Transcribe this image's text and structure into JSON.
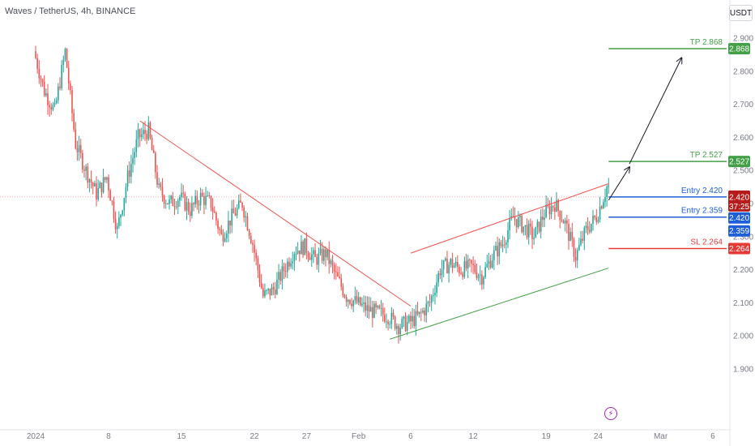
{
  "header": {
    "symbol_title": "Waves / TetherUS, 4h, BINANCE",
    "currency": "USDT"
  },
  "event_icon": "lightning-icon",
  "colors": {
    "up": "#26a69a",
    "down": "#ef5350",
    "tp": "#43a047",
    "entry": "#1e5fd8",
    "sl": "#e53935",
    "current": "#b71c1c",
    "countdown": "#c62828"
  },
  "price_tags": {
    "current_price": "2.420",
    "countdown": "37:25",
    "entry_420": "2.420",
    "entry_359": "2.359"
  },
  "chart_data": {
    "type": "candlestick",
    "title": "Waves / TetherUS, 4h, BINANCE",
    "y_axis": {
      "range": [
        1.88,
        2.94
      ],
      "ticks": [
        "2.900",
        "2.800",
        "2.700",
        "2.600",
        "2.500",
        "2.400",
        "2.300",
        "2.200",
        "2.100",
        "2.000",
        "1.900"
      ]
    },
    "x_axis": {
      "range": [
        "2024-01-01",
        "2024-03-06"
      ],
      "ticks": [
        {
          "date": "2024-01-01",
          "label": "2024"
        },
        {
          "date": "2024-01-08",
          "label": "8"
        },
        {
          "date": "2024-01-15",
          "label": "15"
        },
        {
          "date": "2024-01-22",
          "label": "22"
        },
        {
          "date": "2024-01-27",
          "label": "27"
        },
        {
          "date": "2024-02-01",
          "label": "Feb"
        },
        {
          "date": "2024-02-06",
          "label": "6"
        },
        {
          "date": "2024-02-12",
          "label": "12"
        },
        {
          "date": "2024-02-19",
          "label": "19"
        },
        {
          "date": "2024-02-24",
          "label": "24"
        },
        {
          "date": "2024-03-01",
          "label": "Mar"
        },
        {
          "date": "2024-03-06",
          "label": "6"
        }
      ]
    },
    "price_path": [
      [
        "2024-01-01",
        2.86
      ],
      [
        "2024-01-02",
        2.74
      ],
      [
        "2024-01-03",
        2.68
      ],
      [
        "2024-01-04",
        2.86
      ],
      [
        "2024-01-05",
        2.58
      ],
      [
        "2024-01-06",
        2.5
      ],
      [
        "2024-01-07",
        2.43
      ],
      [
        "2024-01-08",
        2.48
      ],
      [
        "2024-01-09",
        2.32
      ],
      [
        "2024-01-10",
        2.48
      ],
      [
        "2024-01-11",
        2.6
      ],
      [
        "2024-01-12",
        2.62
      ],
      [
        "2024-01-13",
        2.44
      ],
      [
        "2024-01-14",
        2.4
      ],
      [
        "2024-01-15",
        2.42
      ],
      [
        "2024-01-16",
        2.38
      ],
      [
        "2024-01-17",
        2.42
      ],
      [
        "2024-01-18",
        2.4
      ],
      [
        "2024-01-19",
        2.3
      ],
      [
        "2024-01-20",
        2.36
      ],
      [
        "2024-01-21",
        2.4
      ],
      [
        "2024-01-22",
        2.28
      ],
      [
        "2024-01-23",
        2.12
      ],
      [
        "2024-01-24",
        2.14
      ],
      [
        "2024-01-25",
        2.2
      ],
      [
        "2024-01-26",
        2.26
      ],
      [
        "2024-01-27",
        2.27
      ],
      [
        "2024-01-28",
        2.23
      ],
      [
        "2024-01-29",
        2.25
      ],
      [
        "2024-01-30",
        2.18
      ],
      [
        "2024-01-31",
        2.12
      ],
      [
        "2024-02-01",
        2.1
      ],
      [
        "2024-02-02",
        2.08
      ],
      [
        "2024-02-03",
        2.07
      ],
      [
        "2024-02-04",
        2.06
      ],
      [
        "2024-02-05",
        2.03
      ],
      [
        "2024-02-06",
        2.04
      ],
      [
        "2024-02-07",
        2.06
      ],
      [
        "2024-02-08",
        2.1
      ],
      [
        "2024-02-09",
        2.2
      ],
      [
        "2024-02-10",
        2.22
      ],
      [
        "2024-02-11",
        2.2
      ],
      [
        "2024-02-12",
        2.21
      ],
      [
        "2024-02-13",
        2.18
      ],
      [
        "2024-02-14",
        2.24
      ],
      [
        "2024-02-15",
        2.28
      ],
      [
        "2024-02-16",
        2.36
      ],
      [
        "2024-02-17",
        2.33
      ],
      [
        "2024-02-18",
        2.3
      ],
      [
        "2024-02-19",
        2.37
      ],
      [
        "2024-02-20",
        2.4
      ],
      [
        "2024-02-21",
        2.34
      ],
      [
        "2024-02-22",
        2.24
      ],
      [
        "2024-02-23",
        2.32
      ],
      [
        "2024-02-24",
        2.36
      ],
      [
        "2024-02-25",
        2.45
      ]
    ],
    "trendlines": [
      {
        "name": "descending resistance",
        "color": "#ef5350",
        "from": [
          "2024-01-11",
          2.65
        ],
        "to": [
          "2024-02-06",
          2.09
        ]
      },
      {
        "name": "channel top",
        "color": "#ef5350",
        "from": [
          "2024-02-06",
          2.25
        ],
        "to": [
          "2024-02-25",
          2.46
        ]
      },
      {
        "name": "channel bottom",
        "color": "#43a047",
        "from": [
          "2024-02-04",
          1.99
        ],
        "to": [
          "2024-02-25",
          2.205
        ]
      }
    ],
    "levels": [
      {
        "label": "TP 2.868",
        "tag": "2.868",
        "value": 2.868,
        "color": "#43a047",
        "from": "2024-02-25"
      },
      {
        "label": "TP 2.527",
        "tag": "2.527",
        "value": 2.527,
        "color": "#43a047",
        "from": "2024-02-25"
      },
      {
        "label": "Entry 2.420",
        "tag": "",
        "value": 2.42,
        "color": "#1e5fd8",
        "from": "2024-02-25"
      },
      {
        "label": "Entry 2.359",
        "tag": "",
        "value": 2.359,
        "color": "#1e5fd8",
        "from": "2024-02-25"
      },
      {
        "label": "SL 2.264",
        "tag": "2.264",
        "value": 2.264,
        "color": "#e53935",
        "from": "2024-02-25"
      }
    ],
    "projection_arrows": [
      {
        "from": [
          "2024-02-25",
          2.41
        ],
        "to": [
          "2024-02-27",
          2.51
        ]
      },
      {
        "from": [
          "2024-02-27",
          2.52
        ],
        "to": [
          "2024-03-03",
          2.84
        ]
      }
    ],
    "current_price": 2.42
  }
}
